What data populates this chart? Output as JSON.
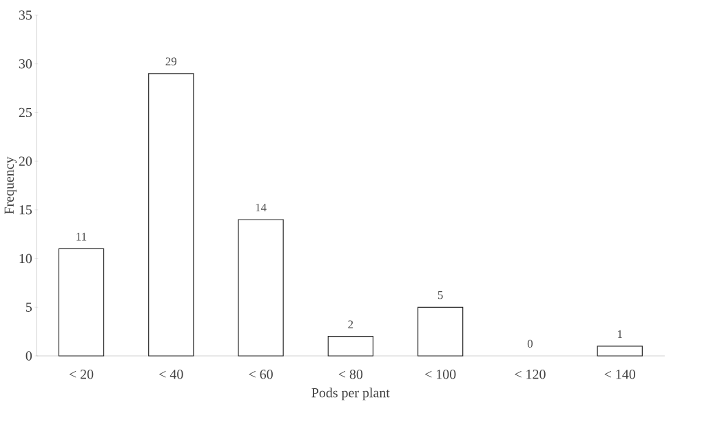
{
  "chart_data": {
    "type": "bar",
    "xlabel": "Pods per plant",
    "ylabel": "Frequency",
    "categories": [
      "< 20",
      "< 40",
      "< 60",
      "< 80",
      "< 100",
      "< 120",
      "< 140"
    ],
    "values": [
      11,
      29,
      14,
      2,
      5,
      0,
      1
    ],
    "color": "#ffffff",
    "ylim": [
      0,
      35
    ],
    "yticks": [
      0,
      5,
      10,
      15,
      20,
      25,
      30,
      35
    ],
    "data_labels": true,
    "grid": false
  }
}
